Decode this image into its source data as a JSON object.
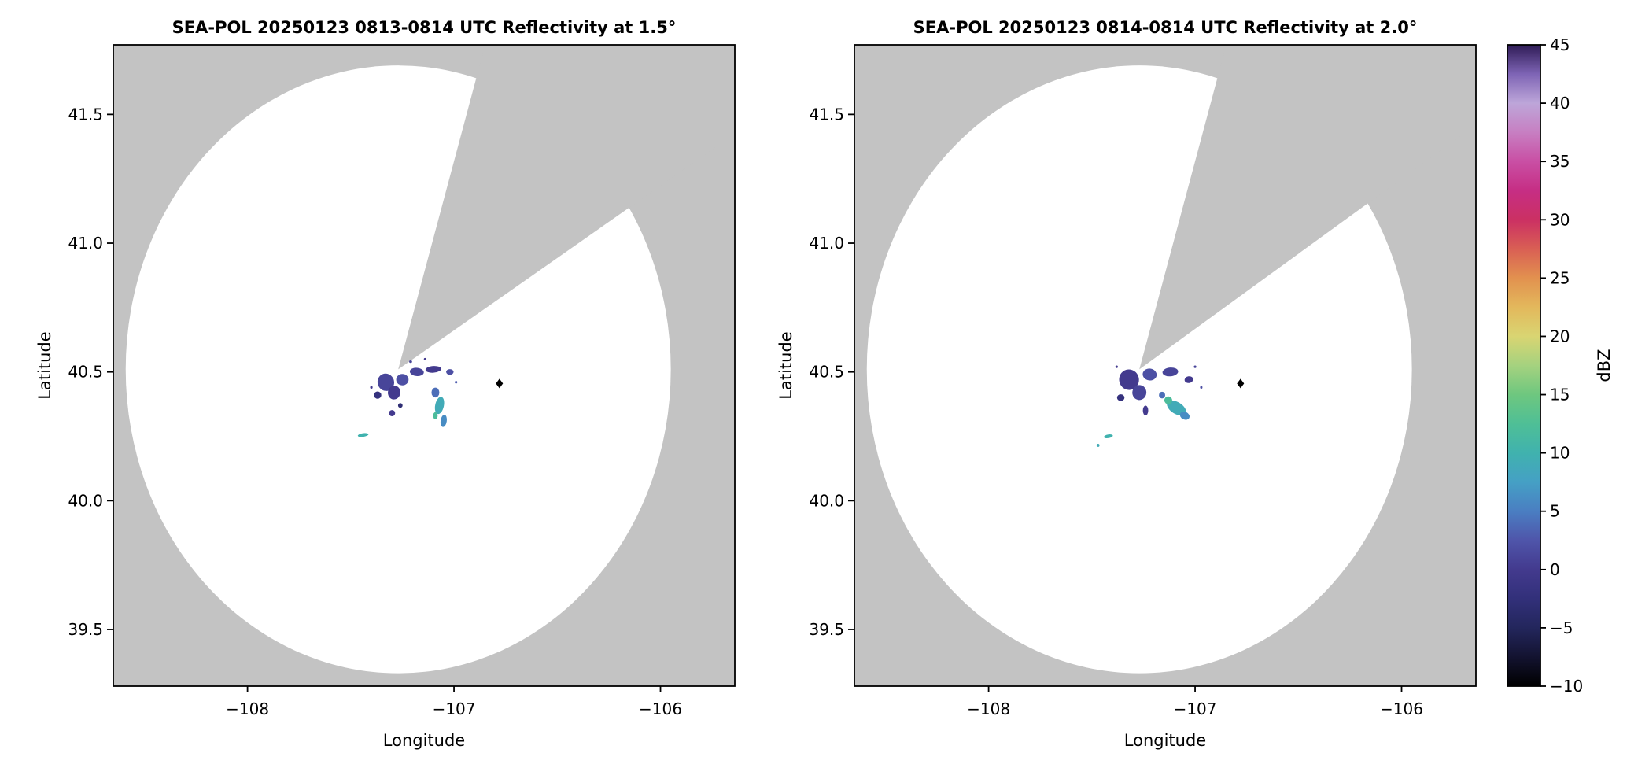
{
  "colors": {
    "no_data_bg": "#c3c3c3",
    "coverage": "#ffffff",
    "frame": "#000000",
    "text": "#000000"
  },
  "chart_data": [
    {
      "type": "heatmap",
      "subtype": "radar_ppi",
      "title": "SEA-POL 20250123 0813-0814 UTC Reflectivity at 1.5°",
      "xlabel": "Longitude",
      "ylabel": "Latitude",
      "xlim": [
        -108.65,
        -105.64
      ],
      "ylim": [
        39.28,
        41.77
      ],
      "xticks": [
        -108,
        -107,
        -106
      ],
      "xtick_labels": [
        "−108",
        "−107",
        "−106"
      ],
      "yticks": [
        39.5,
        40.0,
        40.5,
        41.0,
        41.5
      ],
      "ytick_labels": [
        "39.5",
        "40.0",
        "40.5",
        "41.0",
        "41.5"
      ],
      "grid": false,
      "radar": {
        "lon": -107.27,
        "lat": 40.51,
        "range_lon_deg": 1.32,
        "range_lat_deg": 1.18
      },
      "blocked_sector_azimuth_deg": [
        15,
        55
      ],
      "marker": {
        "lon": -106.78,
        "lat": 40.455,
        "shape": "diamond",
        "color": "#000000"
      },
      "echoes": [
        {
          "lon": -107.33,
          "lat": 40.46,
          "rx": 0.04,
          "ry": 0.034,
          "rot": -20,
          "dbz": 1
        },
        {
          "lon": -107.29,
          "lat": 40.42,
          "rx": 0.03,
          "ry": 0.027,
          "rot": 10,
          "dbz": 0
        },
        {
          "lon": -107.37,
          "lat": 40.41,
          "rx": 0.018,
          "ry": 0.014,
          "rot": 0,
          "dbz": -2
        },
        {
          "lon": -107.25,
          "lat": 40.47,
          "rx": 0.03,
          "ry": 0.022,
          "rot": 0,
          "dbz": 2
        },
        {
          "lon": -107.18,
          "lat": 40.5,
          "rx": 0.034,
          "ry": 0.016,
          "rot": 6,
          "dbz": 1
        },
        {
          "lon": -107.1,
          "lat": 40.51,
          "rx": 0.038,
          "ry": 0.013,
          "rot": -4,
          "dbz": 0
        },
        {
          "lon": -107.02,
          "lat": 40.5,
          "rx": 0.018,
          "ry": 0.011,
          "rot": 0,
          "dbz": 2
        },
        {
          "lon": -107.3,
          "lat": 40.34,
          "rx": 0.015,
          "ry": 0.012,
          "rot": 0,
          "dbz": 0
        },
        {
          "lon": -107.26,
          "lat": 40.37,
          "rx": 0.011,
          "ry": 0.009,
          "rot": 0,
          "dbz": -3
        },
        {
          "lon": -107.09,
          "lat": 40.42,
          "rx": 0.019,
          "ry": 0.019,
          "rot": 0,
          "dbz": 4
        },
        {
          "lon": -107.07,
          "lat": 40.37,
          "rx": 0.021,
          "ry": 0.034,
          "rot": 12,
          "dbz": 9
        },
        {
          "lon": -107.05,
          "lat": 40.31,
          "rx": 0.015,
          "ry": 0.024,
          "rot": 8,
          "dbz": 6
        },
        {
          "lon": -107.09,
          "lat": 40.33,
          "rx": 0.011,
          "ry": 0.014,
          "rot": 0,
          "dbz": 12
        },
        {
          "lon": -107.44,
          "lat": 40.255,
          "rx": 0.026,
          "ry": 0.007,
          "rot": -8,
          "dbz": 10
        },
        {
          "lon": -107.4,
          "lat": 40.44,
          "rx": 0.006,
          "ry": 0.005,
          "rot": 0,
          "dbz": 0
        },
        {
          "lon": -107.21,
          "lat": 40.54,
          "rx": 0.007,
          "ry": 0.005,
          "rot": 0,
          "dbz": 1
        },
        {
          "lon": -106.99,
          "lat": 40.46,
          "rx": 0.006,
          "ry": 0.005,
          "rot": 0,
          "dbz": 3
        },
        {
          "lon": -107.14,
          "lat": 40.55,
          "rx": 0.006,
          "ry": 0.004,
          "rot": 0,
          "dbz": 0
        }
      ]
    },
    {
      "type": "heatmap",
      "subtype": "radar_ppi",
      "title": "SEA-POL 20250123 0814-0814 UTC Reflectivity at 2.0°",
      "xlabel": "Longitude",
      "ylabel": "Latitude",
      "xlim": [
        -108.65,
        -105.64
      ],
      "ylim": [
        39.28,
        41.77
      ],
      "xticks": [
        -108,
        -107,
        -106
      ],
      "xtick_labels": [
        "−108",
        "−107",
        "−106"
      ],
      "yticks": [
        39.5,
        40.0,
        40.5,
        41.0,
        41.5
      ],
      "ytick_labels": [
        "39.5",
        "40.0",
        "40.5",
        "41.0",
        "41.5"
      ],
      "grid": false,
      "radar": {
        "lon": -107.27,
        "lat": 40.51,
        "range_lon_deg": 1.32,
        "range_lat_deg": 1.18
      },
      "blocked_sector_azimuth_deg": [
        15,
        54
      ],
      "marker": {
        "lon": -106.78,
        "lat": 40.455,
        "shape": "diamond",
        "color": "#000000"
      },
      "echoes": [
        {
          "lon": -107.32,
          "lat": 40.47,
          "rx": 0.048,
          "ry": 0.04,
          "rot": -15,
          "dbz": 0
        },
        {
          "lon": -107.27,
          "lat": 40.42,
          "rx": 0.034,
          "ry": 0.029,
          "rot": 5,
          "dbz": 1
        },
        {
          "lon": -107.36,
          "lat": 40.4,
          "rx": 0.018,
          "ry": 0.013,
          "rot": 0,
          "dbz": -2
        },
        {
          "lon": -107.22,
          "lat": 40.49,
          "rx": 0.034,
          "ry": 0.023,
          "rot": 8,
          "dbz": 2
        },
        {
          "lon": -107.12,
          "lat": 40.5,
          "rx": 0.038,
          "ry": 0.017,
          "rot": -5,
          "dbz": 1
        },
        {
          "lon": -107.03,
          "lat": 40.47,
          "rx": 0.021,
          "ry": 0.013,
          "rot": -10,
          "dbz": 0
        },
        {
          "lon": -107.24,
          "lat": 40.35,
          "rx": 0.013,
          "ry": 0.019,
          "rot": 0,
          "dbz": 0
        },
        {
          "lon": -107.09,
          "lat": 40.36,
          "rx": 0.052,
          "ry": 0.023,
          "rot": 32,
          "dbz": 9
        },
        {
          "lon": -107.05,
          "lat": 40.33,
          "rx": 0.024,
          "ry": 0.015,
          "rot": 25,
          "dbz": 6
        },
        {
          "lon": -107.13,
          "lat": 40.39,
          "rx": 0.019,
          "ry": 0.015,
          "rot": 20,
          "dbz": 12
        },
        {
          "lon": -107.16,
          "lat": 40.41,
          "rx": 0.015,
          "ry": 0.013,
          "rot": 0,
          "dbz": 4
        },
        {
          "lon": -107.42,
          "lat": 40.25,
          "rx": 0.022,
          "ry": 0.007,
          "rot": -10,
          "dbz": 10
        },
        {
          "lon": -107.47,
          "lat": 40.215,
          "rx": 0.007,
          "ry": 0.006,
          "rot": 0,
          "dbz": 9
        },
        {
          "lon": -107.0,
          "lat": 40.52,
          "rx": 0.006,
          "ry": 0.005,
          "rot": 0,
          "dbz": 1
        },
        {
          "lon": -106.97,
          "lat": 40.44,
          "rx": 0.005,
          "ry": 0.005,
          "rot": 0,
          "dbz": 2
        },
        {
          "lon": -107.38,
          "lat": 40.52,
          "rx": 0.006,
          "ry": 0.005,
          "rot": 0,
          "dbz": 0
        }
      ]
    }
  ],
  "colorbar": {
    "label": "dBZ",
    "min": -10,
    "max": 45,
    "ticks": [
      45,
      40,
      35,
      30,
      25,
      20,
      15,
      10,
      5,
      0,
      -5,
      -10
    ],
    "tick_labels": [
      "45",
      "40",
      "35",
      "30",
      "25",
      "20",
      "15",
      "10",
      "5",
      "0",
      "−5",
      "−10"
    ],
    "orientation": "vertical",
    "stops": [
      {
        "v": -10,
        "c": "#000000"
      },
      {
        "v": -7.5,
        "c": "#131330"
      },
      {
        "v": -5,
        "c": "#23265c"
      },
      {
        "v": -2.5,
        "c": "#32307a"
      },
      {
        "v": 0,
        "c": "#433a8e"
      },
      {
        "v": 2.5,
        "c": "#4f55aa"
      },
      {
        "v": 5,
        "c": "#4a7ec2"
      },
      {
        "v": 7.5,
        "c": "#45a0c5"
      },
      {
        "v": 10,
        "c": "#40b2ae"
      },
      {
        "v": 12.5,
        "c": "#4fbf96"
      },
      {
        "v": 15,
        "c": "#6ec77f"
      },
      {
        "v": 17.5,
        "c": "#a5d27f"
      },
      {
        "v": 20,
        "c": "#d9d572"
      },
      {
        "v": 22.5,
        "c": "#e3b85c"
      },
      {
        "v": 25,
        "c": "#e2914f"
      },
      {
        "v": 27.5,
        "c": "#d95f54"
      },
      {
        "v": 30,
        "c": "#cb3063"
      },
      {
        "v": 32.5,
        "c": "#c62e84"
      },
      {
        "v": 35,
        "c": "#c94fa4"
      },
      {
        "v": 37.5,
        "c": "#c77fc2"
      },
      {
        "v": 40,
        "c": "#bda6d9"
      },
      {
        "v": 42.5,
        "c": "#7e64b5"
      },
      {
        "v": 45,
        "c": "#2f1c56"
      }
    ]
  }
}
